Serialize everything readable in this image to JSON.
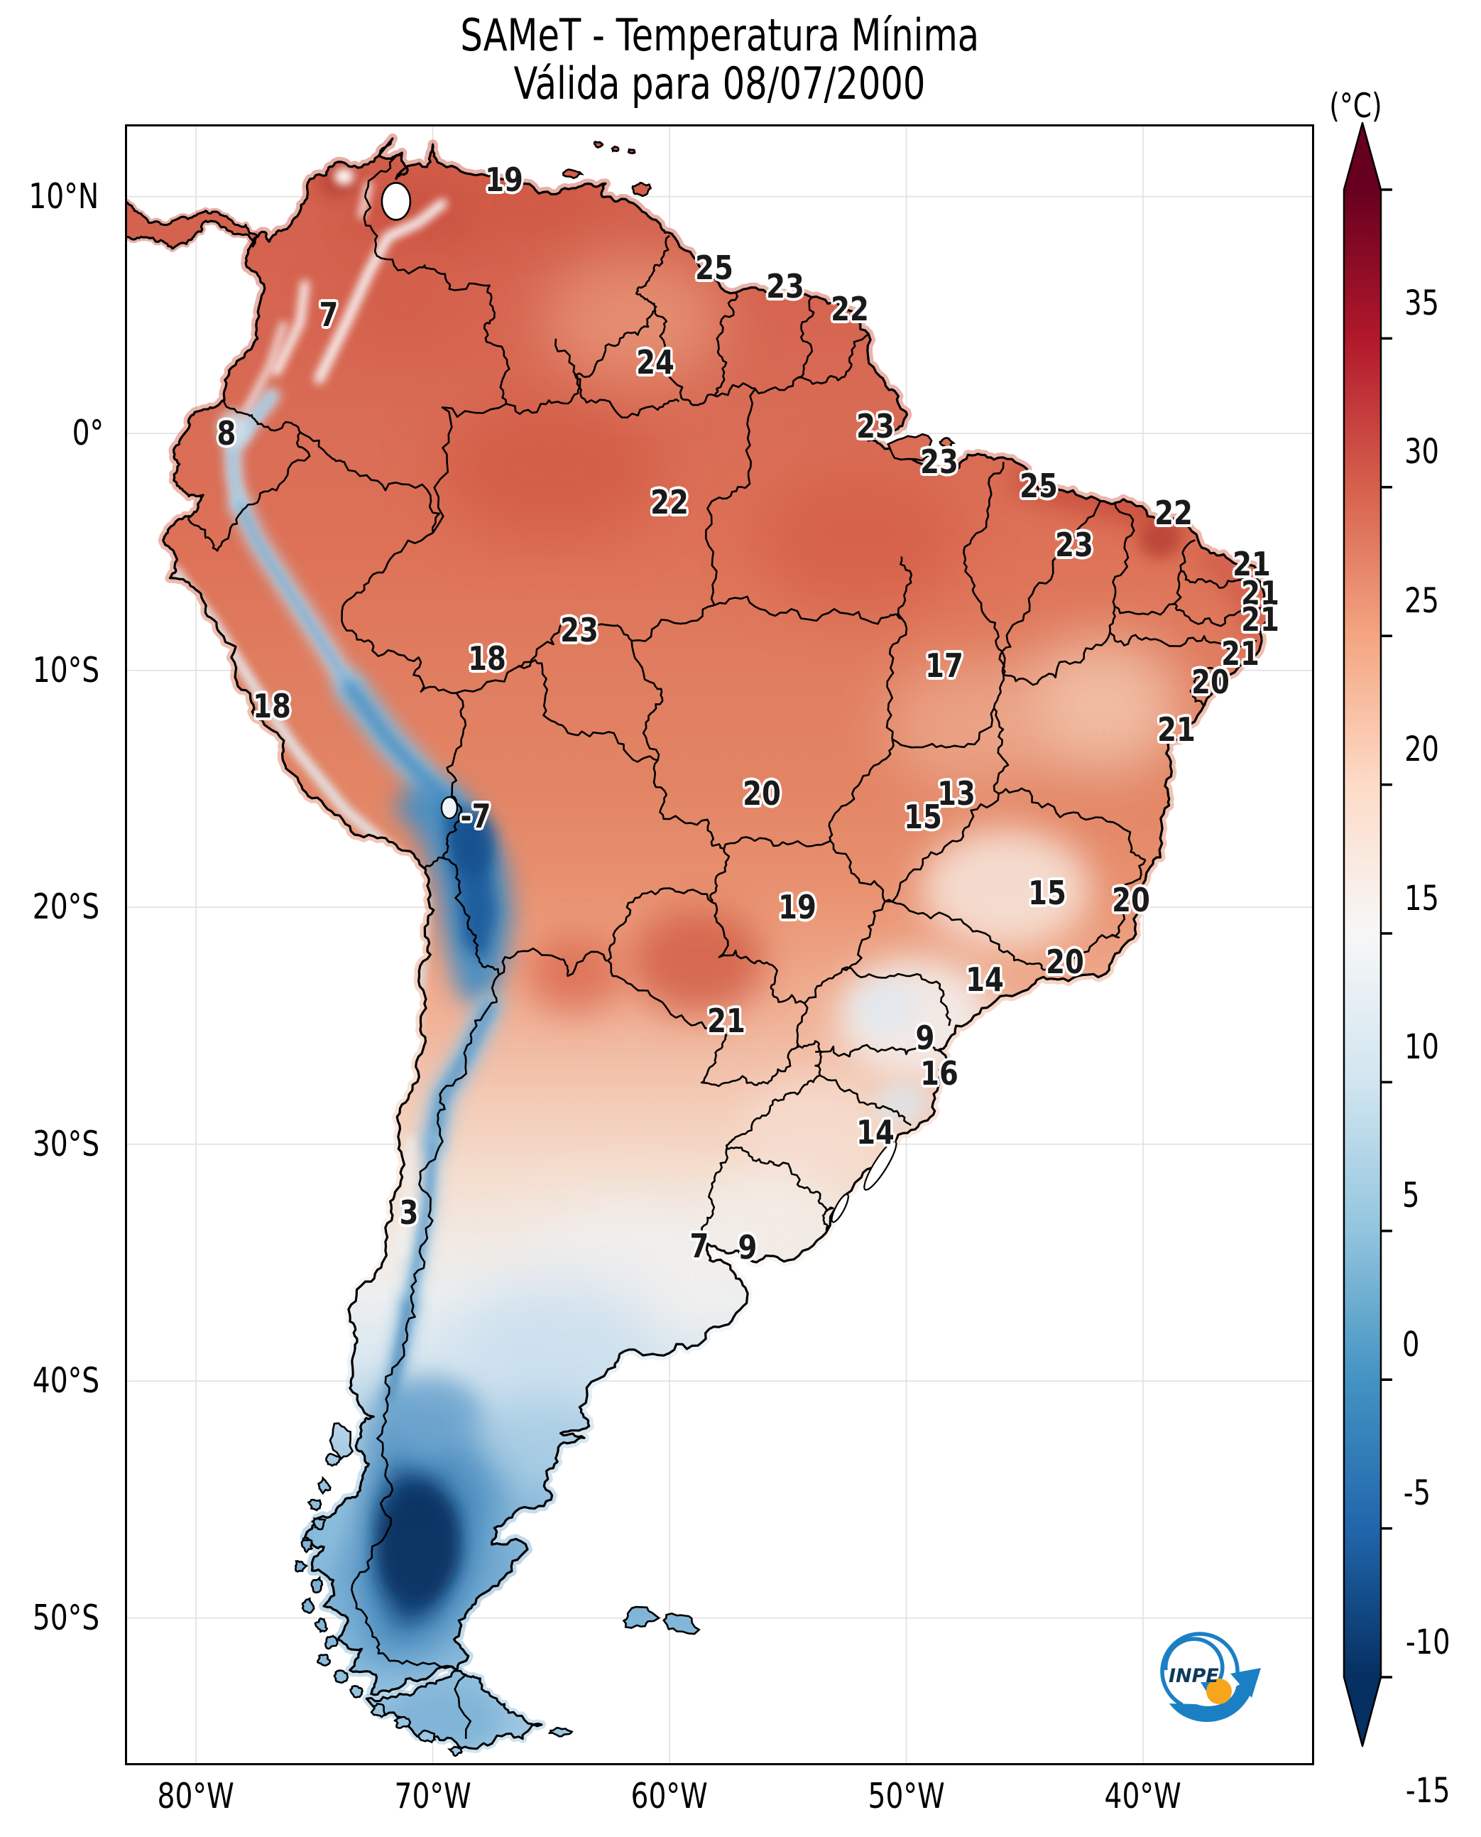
{
  "title": {
    "line1": "SAMeT - Temperatura Mínima",
    "line2": "Válida para 08/07/2000"
  },
  "colorbar": {
    "unit_label": "(°C)",
    "ticks": [
      35,
      30,
      25,
      20,
      15,
      10,
      5,
      0,
      -5,
      -10,
      -15
    ],
    "vmin": -15,
    "vmax": 35,
    "palette": [
      "#67001f",
      "#b2182b",
      "#d6604d",
      "#f4a582",
      "#fddbc7",
      "#f7f7f7",
      "#d1e5f0",
      "#92c5de",
      "#4393c3",
      "#2166ac",
      "#053061"
    ]
  },
  "axes": {
    "lat_ticks": [
      {
        "label": "10°N",
        "lat": 10
      },
      {
        "label": "0°",
        "lat": 0
      },
      {
        "label": "10°S",
        "lat": -10
      },
      {
        "label": "20°S",
        "lat": -20
      },
      {
        "label": "30°S",
        "lat": -30
      },
      {
        "label": "40°S",
        "lat": -40
      },
      {
        "label": "50°S",
        "lat": -50
      }
    ],
    "lon_ticks": [
      {
        "label": "80°W",
        "lon": -80
      },
      {
        "label": "70°W",
        "lon": -70
      },
      {
        "label": "60°W",
        "lon": -60
      },
      {
        "label": "50°W",
        "lon": -50
      },
      {
        "label": "40°W",
        "lon": -40
      }
    ]
  },
  "logo": {
    "text": "INPE"
  },
  "chart_data": {
    "type": "map",
    "region": "South America",
    "variable": "Temperatura Mínima",
    "valid_date": "08/07/2000",
    "unit": "°C",
    "labels": [
      {
        "value": 19,
        "lon": -67.0,
        "lat": 10.7
      },
      {
        "value": 7,
        "lon": -74.4,
        "lat": 5.0
      },
      {
        "value": 8,
        "lon": -78.7,
        "lat": 0.0
      },
      {
        "value": 25,
        "lon": -58.1,
        "lat": 7.0
      },
      {
        "value": 23,
        "lon": -55.1,
        "lat": 6.2
      },
      {
        "value": 22,
        "lon": -52.4,
        "lat": 5.25
      },
      {
        "value": 24,
        "lon": -60.6,
        "lat": 3.0
      },
      {
        "value": 23,
        "lon": -51.3,
        "lat": 0.3
      },
      {
        "value": 23,
        "lon": -48.6,
        "lat": -1.2
      },
      {
        "value": 25,
        "lon": -44.4,
        "lat": -2.2
      },
      {
        "value": 22,
        "lon": -38.7,
        "lat": -3.35
      },
      {
        "value": 23,
        "lon": -42.9,
        "lat": -4.7
      },
      {
        "value": 22,
        "lon": -60.0,
        "lat": -2.9
      },
      {
        "value": 21,
        "lon": -35.4,
        "lat": -5.5
      },
      {
        "value": 21,
        "lon": -35.05,
        "lat": -6.75
      },
      {
        "value": 21,
        "lon": -35.05,
        "lat": -7.85
      },
      {
        "value": 23,
        "lon": -63.8,
        "lat": -8.3
      },
      {
        "value": 18,
        "lon": -67.7,
        "lat": -9.5
      },
      {
        "value": 17,
        "lon": -48.4,
        "lat": -9.8
      },
      {
        "value": 21,
        "lon": -35.9,
        "lat": -9.3
      },
      {
        "value": 20,
        "lon": -37.15,
        "lat": -10.5
      },
      {
        "value": 18,
        "lon": -76.8,
        "lat": -11.5
      },
      {
        "value": 21,
        "lon": -38.6,
        "lat": -12.5
      },
      {
        "value": -7,
        "lon": -68.2,
        "lat": -16.15
      },
      {
        "value": 13,
        "lon": -47.9,
        "lat": -15.2
      },
      {
        "value": 15,
        "lon": -49.3,
        "lat": -16.2
      },
      {
        "value": 20,
        "lon": -56.1,
        "lat": -15.2
      },
      {
        "value": 15,
        "lon": -44.05,
        "lat": -19.4
      },
      {
        "value": 20,
        "lon": -40.5,
        "lat": -19.7
      },
      {
        "value": 19,
        "lon": -54.6,
        "lat": -20.0
      },
      {
        "value": 20,
        "lon": -43.3,
        "lat": -22.3
      },
      {
        "value": 14,
        "lon": -46.7,
        "lat": -23.05
      },
      {
        "value": 21,
        "lon": -57.6,
        "lat": -24.8
      },
      {
        "value": 9,
        "lon": -49.2,
        "lat": -25.5
      },
      {
        "value": 16,
        "lon": -48.6,
        "lat": -27.0
      },
      {
        "value": 14,
        "lon": -51.3,
        "lat": -29.5
      },
      {
        "value": 3,
        "lon": -71.0,
        "lat": -32.9
      },
      {
        "value": 7,
        "lon": -58.75,
        "lat": -34.3
      },
      {
        "value": 9,
        "lon": -56.7,
        "lat": -34.35
      }
    ]
  }
}
